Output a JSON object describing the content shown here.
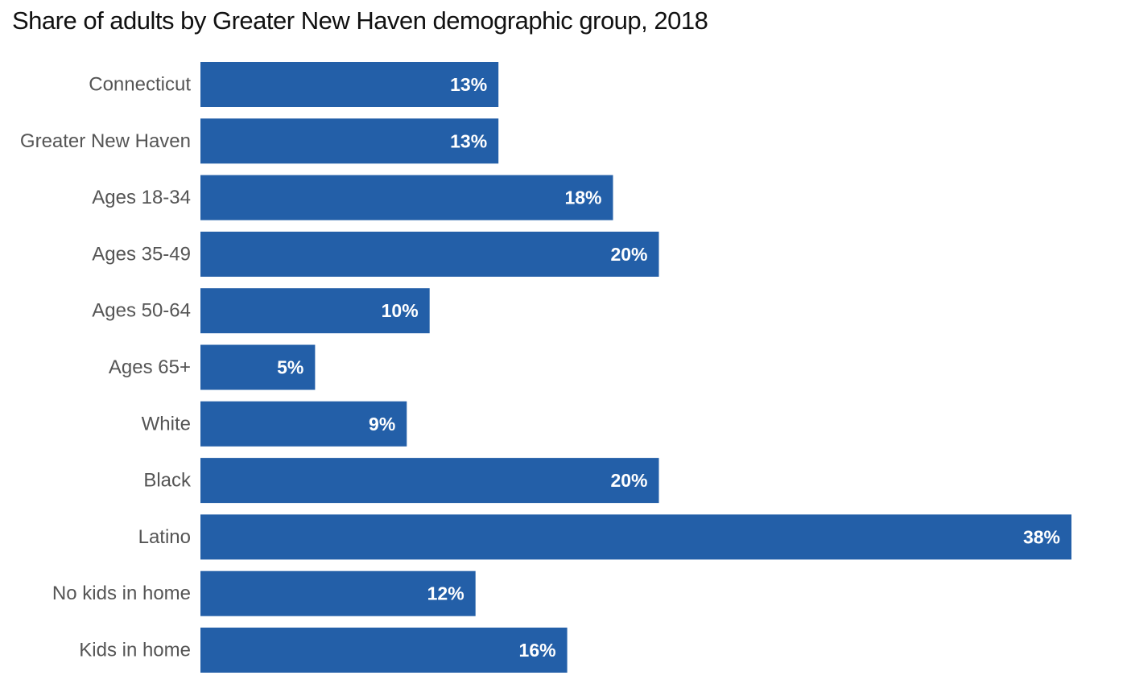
{
  "chart_data": {
    "type": "bar",
    "orientation": "horizontal",
    "title": "Share of adults by Greater New Haven demographic group, 2018",
    "categories": [
      "Connecticut",
      "Greater New Haven",
      "Ages 18-34",
      "Ages 35-49",
      "Ages 50-64",
      "Ages 65+",
      "White",
      "Black",
      "Latino",
      "No kids in home",
      "Kids in home"
    ],
    "values": [
      0.13,
      0.13,
      0.18,
      0.2,
      0.1,
      0.05,
      0.09,
      0.2,
      0.38,
      0.12,
      0.16
    ],
    "value_labels": [
      "13%",
      "13%",
      "18%",
      "20%",
      "10%",
      "5%",
      "9%",
      "20%",
      "38%",
      "12%",
      "16%"
    ],
    "xlim": [
      0,
      0.38
    ],
    "bar_color": "#235fa8",
    "grid": false,
    "legend": "none"
  }
}
